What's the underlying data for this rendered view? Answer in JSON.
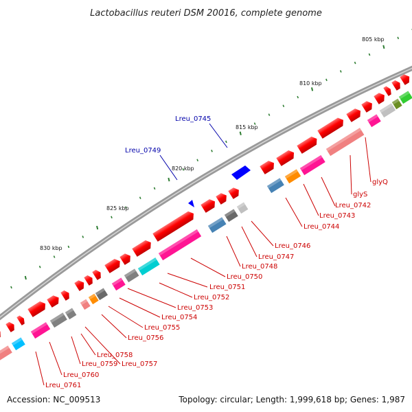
{
  "title": "Lactobacillus reuteri DSM 20016, complete genome",
  "accession": "Accession: NC_009513",
  "topology": "Topology: circular; Length: 1,999,618 bp; Genes: 1,987",
  "ticks": [
    {
      "label": "805 kbp"
    },
    {
      "label": "810 kbp"
    },
    {
      "label": "815 kbp"
    },
    {
      "label": "820 kbp"
    },
    {
      "label": "825 kbp"
    },
    {
      "label": "830 kbp"
    }
  ],
  "forward_labels": [
    {
      "text": "Lreu_0745"
    },
    {
      "text": "Lreu_0749"
    }
  ],
  "reverse_labels": [
    {
      "text": "glyQ"
    },
    {
      "text": "glyS"
    },
    {
      "text": "Lreu_0742"
    },
    {
      "text": "Lreu_0743"
    },
    {
      "text": "Lreu_0744"
    },
    {
      "text": "Lreu_0746"
    },
    {
      "text": "Lreu_0747"
    },
    {
      "text": "Lreu_0748"
    },
    {
      "text": "Lreu_0750"
    },
    {
      "text": "Lreu_0751"
    },
    {
      "text": "Lreu_0752"
    },
    {
      "text": "Lreu_0753"
    },
    {
      "text": "Lreu_0754"
    },
    {
      "text": "Lreu_0755"
    },
    {
      "text": "Lreu_0756"
    },
    {
      "text": "Lreu_0758"
    },
    {
      "text": "Lreu_0757"
    },
    {
      "text": "Lreu_0759"
    },
    {
      "text": "Lreu_0760"
    },
    {
      "text": "Lreu_0761"
    }
  ],
  "colors": {
    "backbone": "#888888",
    "cds": "#ff0000",
    "forward_highlight": "#0000ff",
    "label_red": "#cc0000",
    "label_blue": "#0000aa",
    "tick": "#2e7d32"
  }
}
